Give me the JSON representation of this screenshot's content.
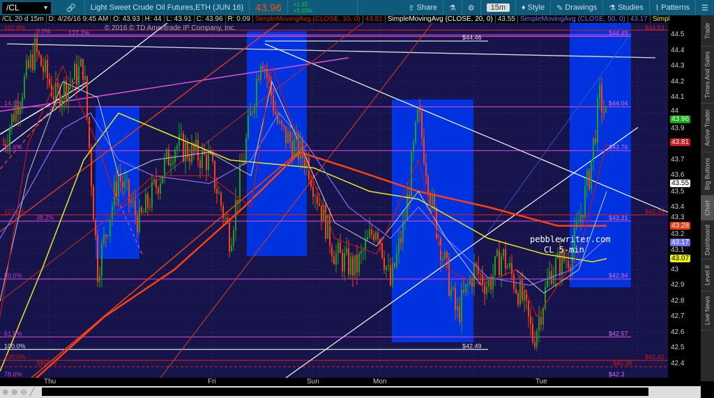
{
  "toolbar": {
    "symbol": "/CL",
    "description": "Light Sweet Crude Oil Futures,ETH (JUN 16)",
    "last": "43.96",
    "change": "+1.32",
    "change_pct": "+3.10%",
    "share": "Share",
    "timeframe": "15m",
    "style": "Style",
    "drawings": "Drawings",
    "studies": "Studies",
    "patterns": "Patterns"
  },
  "info": {
    "chart": "/CL 20 d 15m",
    "date": "D: 4/26/16 9:45 AM",
    "open": "O: 43.93",
    "high": "H: 44",
    "low": "L: 43.91",
    "close": "C: 43.96",
    "range": "R: 0.09",
    "studies": [
      {
        "name": "SimpleMovingAvg (CLOSE, 10, 0)",
        "value": "43.81",
        "color": "#d0201a"
      },
      {
        "name": "SimpleMovingAvg (CLOSE, 20, 0)",
        "value": "43.55",
        "color": "#ffffff"
      },
      {
        "name": "SimpleMovingAvg (CLOSE, 50, 0)",
        "value": "43.17",
        "color": "#7b6cf0"
      },
      {
        "name": "SimpleMovingAvg (CLOSE, 100, 0)",
        "value": "43.07",
        "color": "#e8e820"
      }
    ]
  },
  "copyright": "© 2016 © TD Ameritrade IP Company, Inc.",
  "watermark": {
    "line1": "pebblewriter.com",
    "line2": "CL 5-min"
  },
  "price_axis": {
    "ticks": [
      "44.5",
      "44.4",
      "44.3",
      "44.2",
      "44.1",
      "44",
      "43.9",
      "43.7",
      "43.6",
      "43.5",
      "43.4",
      "43.3",
      "43.2",
      "43.1",
      "43",
      "42.9",
      "42.8",
      "42.7",
      "42.6",
      "42.5",
      "42.4"
    ],
    "badges": [
      {
        "value": "43.96",
        "price": 43.96,
        "bg": "#12b012",
        "fg": "#fff"
      },
      {
        "value": "43.81",
        "price": 43.81,
        "bg": "#c81818",
        "fg": "#fff"
      },
      {
        "value": "43.55",
        "price": 43.55,
        "bg": "#fff",
        "fg": "#000"
      },
      {
        "value": "43.28",
        "price": 43.28,
        "bg": "#f03a10",
        "fg": "#fff"
      },
      {
        "value": "43.17",
        "price": 43.17,
        "bg": "#7070f0",
        "fg": "#fff"
      },
      {
        "value": "43.07",
        "price": 43.07,
        "bg": "#f0f000",
        "fg": "#000"
      }
    ]
  },
  "levels": [
    {
      "label": "162.8%",
      "price": 44.53,
      "color": "#c02020",
      "right": "$44.53"
    },
    {
      "label": "0.0%",
      "price": 44.5,
      "color": "#c040c0",
      "right": ""
    },
    {
      "label": "127.2%",
      "price": 44.49,
      "color": "#e050e0",
      "right": "$44.49"
    },
    {
      "label": "",
      "price": 44.46,
      "color": "#dddddd",
      "right": "$44.46"
    },
    {
      "label": "14.6%",
      "price": 44.04,
      "color": "#c040c0",
      "right": "$44.04"
    },
    {
      "label": "23.6%",
      "price": 43.76,
      "color": "#c040c0",
      "right": "$43.76"
    },
    {
      "label": "127.2%",
      "price": 43.35,
      "color": "#c02020",
      "right": "$43.35"
    },
    {
      "label": "38.2%",
      "price": 43.31,
      "color": "#c040c0",
      "right": "$43.31"
    },
    {
      "label": "50.0%",
      "price": 42.94,
      "color": "#c040c0",
      "right": "$42.94"
    },
    {
      "label": "61.8%",
      "price": 42.57,
      "color": "#c040c0",
      "right": "$42.57"
    },
    {
      "label": "100.0%",
      "price": 42.49,
      "color": "#dddddd",
      "right": "$42.49"
    },
    {
      "label": "100.0%",
      "price": 42.42,
      "color": "#c02020",
      "right": "$42.42"
    },
    {
      "label": "SMA10",
      "price": 42.38,
      "color": "#c02020",
      "right": "$42.38"
    },
    {
      "label": "78.6%",
      "price": 42.3,
      "color": "#c040c0",
      "right": "$42.3"
    }
  ],
  "price_path": [
    [
      5,
      43.8
    ],
    [
      50,
      44.4
    ],
    [
      80,
      44.1
    ],
    [
      120,
      44.3
    ],
    [
      140,
      43.0
    ],
    [
      170,
      43.6
    ],
    [
      200,
      43.3
    ],
    [
      250,
      43.8
    ],
    [
      300,
      43.7
    ],
    [
      330,
      43.2
    ],
    [
      375,
      44.4
    ],
    [
      400,
      43.9
    ],
    [
      440,
      43.7
    ],
    [
      460,
      43.4
    ],
    [
      480,
      43.1
    ],
    [
      510,
      43.0
    ],
    [
      540,
      43.3
    ],
    [
      560,
      42.9
    ],
    [
      580,
      43.3
    ],
    [
      600,
      44.0
    ],
    [
      620,
      43.4
    ],
    [
      640,
      43.0
    ],
    [
      655,
      42.7
    ],
    [
      680,
      43.0
    ],
    [
      700,
      42.9
    ],
    [
      720,
      43.1
    ],
    [
      750,
      42.8
    ],
    [
      765,
      42.55
    ],
    [
      790,
      43.0
    ],
    [
      820,
      43.1
    ],
    [
      845,
      43.6
    ],
    [
      860,
      44.1
    ],
    [
      870,
      43.96
    ]
  ],
  "days": [
    "Thu",
    "Fri",
    "Sun",
    "Mon",
    "Tue"
  ],
  "side_tabs": [
    "Trade",
    "Times And Sales",
    "Active Trader",
    "Big Buttons",
    "Chart",
    "Dashboard",
    "Level II",
    "Live News"
  ]
}
